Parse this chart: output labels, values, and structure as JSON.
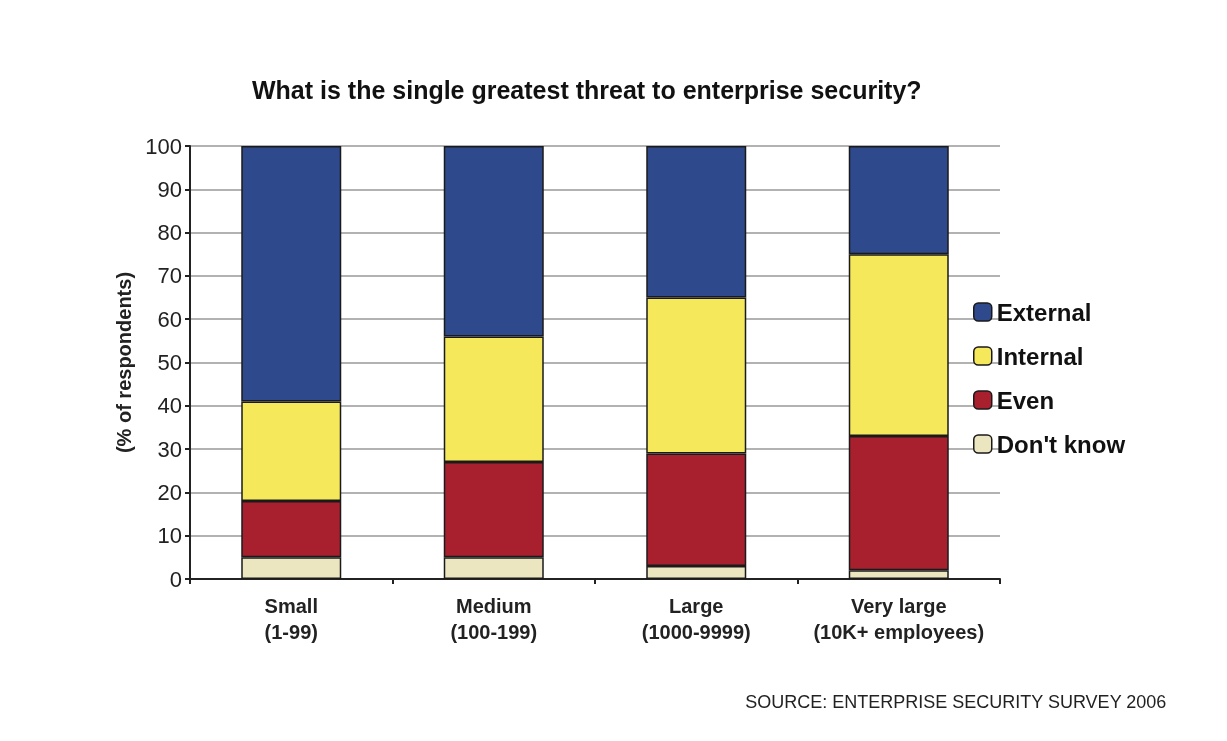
{
  "chart_data": {
    "type": "bar",
    "stacked": true,
    "title": "What is the single greatest threat to enterprise security?",
    "ylabel": "(% of respondents)",
    "categories": [
      "Small\n(1-99)",
      "Medium\n(100-199)",
      "Large\n(1000-9999)",
      "Very large\n(10K+ employees)"
    ],
    "series": [
      {
        "name": "Don't know",
        "color": "#ece6c0",
        "values": [
          5,
          5,
          3,
          2
        ]
      },
      {
        "name": "Even",
        "color": "#a8202e",
        "values": [
          13,
          22,
          26,
          31
        ]
      },
      {
        "name": "Internal",
        "color": "#f5e85a",
        "values": [
          23,
          29,
          36,
          42
        ]
      },
      {
        "name": "External",
        "color": "#2e4a8c",
        "values": [
          59,
          44,
          35,
          25
        ]
      }
    ],
    "ylim": [
      0,
      100
    ],
    "yticks": [
      0,
      10,
      20,
      30,
      40,
      50,
      60,
      70,
      80,
      90,
      100
    ],
    "grid": "y",
    "legend": "right",
    "annotations": [
      "SOURCE: ENTERPRISE SECURITY SURVEY 2006"
    ]
  }
}
